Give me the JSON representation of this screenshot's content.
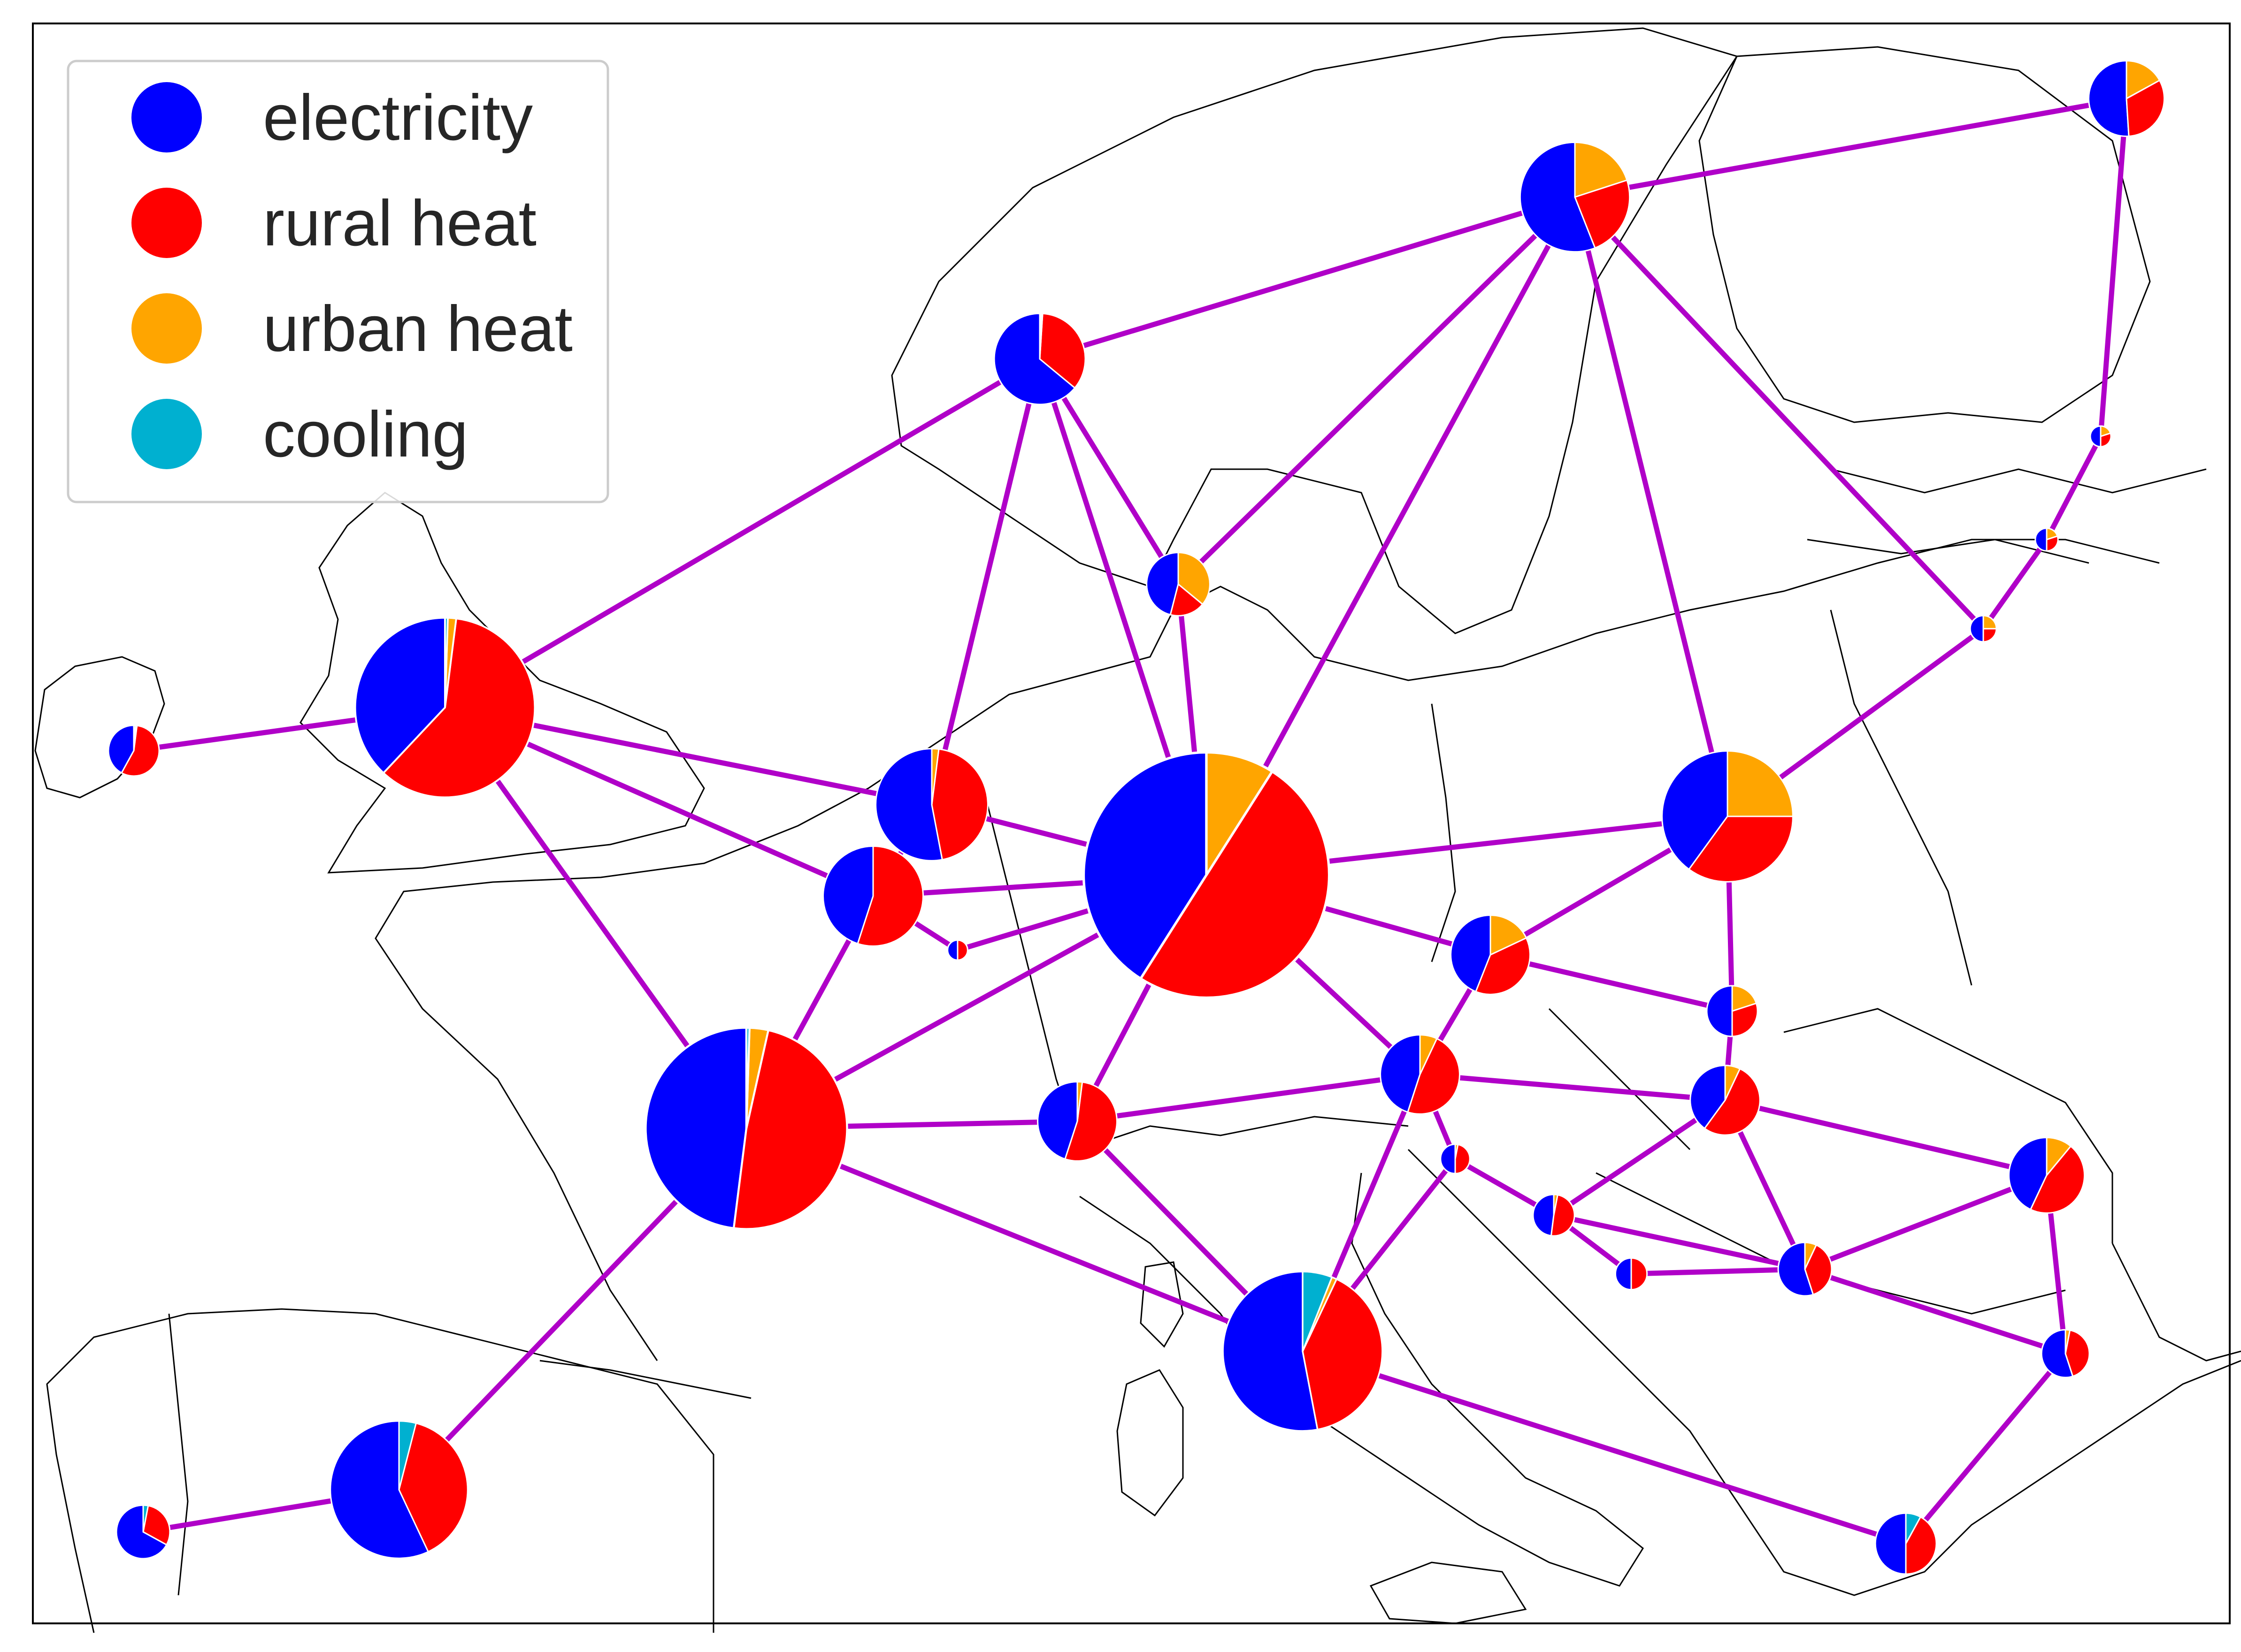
{
  "colors": {
    "electricity": "#0000ff",
    "rural_heat": "#ff0000",
    "urban_heat": "#ffa500",
    "cooling": "#00b0d0",
    "link": "#b000c8",
    "coast": "#000000",
    "background": "#ffffff"
  },
  "legend": {
    "placement": "top-left",
    "items": [
      {
        "key": "electricity",
        "label": "electricity",
        "color": "#0000ff"
      },
      {
        "key": "rural_heat",
        "label": "rural heat",
        "color": "#ff0000"
      },
      {
        "key": "urban_heat",
        "label": "urban heat",
        "color": "#ffa500"
      },
      {
        "key": "cooling",
        "label": "cooling",
        "color": "#00b0d0"
      }
    ]
  },
  "nodes": [
    {
      "id": "ireland",
      "total": 9,
      "shares": {
        "electricity": 0.42,
        "rural_heat": 0.56,
        "urban_heat": 0.01,
        "cooling": 0.01
      }
    },
    {
      "id": "great-britain",
      "total": 113,
      "shares": {
        "electricity": 0.38,
        "rural_heat": 0.6,
        "urban_heat": 0.015,
        "cooling": 0.005
      }
    },
    {
      "id": "norway",
      "total": 29,
      "shares": {
        "electricity": 0.64,
        "rural_heat": 0.35,
        "urban_heat": 0.005,
        "cooling": 0.005
      }
    },
    {
      "id": "sweden",
      "total": 42,
      "shares": {
        "electricity": 0.56,
        "rural_heat": 0.24,
        "urban_heat": 0.2,
        "cooling": 0.0
      }
    },
    {
      "id": "finland",
      "total": 20,
      "shares": {
        "electricity": 0.51,
        "rural_heat": 0.32,
        "urban_heat": 0.17,
        "cooling": 0.0
      }
    },
    {
      "id": "estonia",
      "total": 1.5,
      "shares": {
        "electricity": 0.5,
        "rural_heat": 0.3,
        "urban_heat": 0.2,
        "cooling": 0.0
      }
    },
    {
      "id": "latvia",
      "total": 1.8,
      "shares": {
        "electricity": 0.5,
        "rural_heat": 0.3,
        "urban_heat": 0.2,
        "cooling": 0.0
      }
    },
    {
      "id": "lithuania",
      "total": 2.4,
      "shares": {
        "electricity": 0.5,
        "rural_heat": 0.25,
        "urban_heat": 0.25,
        "cooling": 0.0
      }
    },
    {
      "id": "denmark",
      "total": 14,
      "shares": {
        "electricity": 0.46,
        "rural_heat": 0.18,
        "urban_heat": 0.36,
        "cooling": 0.0
      }
    },
    {
      "id": "netherlands",
      "total": 44,
      "shares": {
        "electricity": 0.53,
        "rural_heat": 0.45,
        "urban_heat": 0.02,
        "cooling": 0.0
      }
    },
    {
      "id": "belgium",
      "total": 35,
      "shares": {
        "electricity": 0.45,
        "rural_heat": 0.55,
        "urban_heat": 0.0,
        "cooling": 0.0
      }
    },
    {
      "id": "luxembourg",
      "total": 1.4,
      "shares": {
        "electricity": 0.5,
        "rural_heat": 0.5,
        "urban_heat": 0.0,
        "cooling": 0.0
      }
    },
    {
      "id": "germany",
      "total": 211,
      "shares": {
        "electricity": 0.41,
        "rural_heat": 0.5,
        "urban_heat": 0.09,
        "cooling": 0.0
      }
    },
    {
      "id": "poland",
      "total": 60,
      "shares": {
        "electricity": 0.4,
        "rural_heat": 0.35,
        "urban_heat": 0.25,
        "cooling": 0.0
      }
    },
    {
      "id": "czechia",
      "total": 22,
      "shares": {
        "electricity": 0.44,
        "rural_heat": 0.38,
        "urban_heat": 0.18,
        "cooling": 0.0
      }
    },
    {
      "id": "slovakia",
      "total": 9,
      "shares": {
        "electricity": 0.5,
        "rural_heat": 0.3,
        "urban_heat": 0.2,
        "cooling": 0.0
      }
    },
    {
      "id": "austria",
      "total": 22,
      "shares": {
        "electricity": 0.45,
        "rural_heat": 0.48,
        "urban_heat": 0.07,
        "cooling": 0.0
      }
    },
    {
      "id": "hungary",
      "total": 17,
      "shares": {
        "electricity": 0.4,
        "rural_heat": 0.53,
        "urban_heat": 0.07,
        "cooling": 0.0
      }
    },
    {
      "id": "switzerland",
      "total": 22,
      "shares": {
        "electricity": 0.45,
        "rural_heat": 0.53,
        "urban_heat": 0.02,
        "cooling": 0.0
      }
    },
    {
      "id": "slovenia",
      "total": 3,
      "shares": {
        "electricity": 0.5,
        "rural_heat": 0.47,
        "urban_heat": 0.03,
        "cooling": 0.0
      }
    },
    {
      "id": "croatia",
      "total": 6,
      "shares": {
        "electricity": 0.48,
        "rural_heat": 0.49,
        "urban_heat": 0.03,
        "cooling": 0.0
      }
    },
    {
      "id": "bosnia",
      "total": 3.5,
      "shares": {
        "electricity": 0.5,
        "rural_heat": 0.5,
        "urban_heat": 0.0,
        "cooling": 0.0
      }
    },
    {
      "id": "serbia",
      "total": 10,
      "shares": {
        "electricity": 0.55,
        "rural_heat": 0.38,
        "urban_heat": 0.07,
        "cooling": 0.0
      }
    },
    {
      "id": "romania",
      "total": 20,
      "shares": {
        "electricity": 0.43,
        "rural_heat": 0.46,
        "urban_heat": 0.11,
        "cooling": 0.0
      }
    },
    {
      "id": "bulgaria",
      "total": 8,
      "shares": {
        "electricity": 0.55,
        "rural_heat": 0.42,
        "urban_heat": 0.03,
        "cooling": 0.0
      }
    },
    {
      "id": "greece",
      "total": 13,
      "shares": {
        "electricity": 0.5,
        "rural_heat": 0.42,
        "urban_heat": 0.0,
        "cooling": 0.08
      }
    },
    {
      "id": "italy",
      "total": 89,
      "shares": {
        "electricity": 0.53,
        "rural_heat": 0.4,
        "urban_heat": 0.01,
        "cooling": 0.06
      }
    },
    {
      "id": "france",
      "total": 142,
      "shares": {
        "electricity": 0.48,
        "rural_heat": 0.485,
        "urban_heat": 0.03,
        "cooling": 0.005
      }
    },
    {
      "id": "spain",
      "total": 66,
      "shares": {
        "electricity": 0.57,
        "rural_heat": 0.39,
        "urban_heat": 0.0,
        "cooling": 0.04
      }
    },
    {
      "id": "portugal",
      "total": 10,
      "shares": {
        "electricity": 0.67,
        "rural_heat": 0.3,
        "urban_heat": 0.0,
        "cooling": 0.03
      }
    }
  ],
  "links": [
    [
      "ireland",
      "great-britain"
    ],
    [
      "great-britain",
      "norway"
    ],
    [
      "great-britain",
      "netherlands"
    ],
    [
      "great-britain",
      "belgium"
    ],
    [
      "great-britain",
      "france"
    ],
    [
      "norway",
      "sweden"
    ],
    [
      "norway",
      "netherlands"
    ],
    [
      "norway",
      "denmark"
    ],
    [
      "norway",
      "germany"
    ],
    [
      "sweden",
      "finland"
    ],
    [
      "sweden",
      "denmark"
    ],
    [
      "sweden",
      "germany"
    ],
    [
      "sweden",
      "poland"
    ],
    [
      "sweden",
      "lithuania"
    ],
    [
      "finland",
      "estonia"
    ],
    [
      "estonia",
      "latvia"
    ],
    [
      "latvia",
      "lithuania"
    ],
    [
      "lithuania",
      "poland"
    ],
    [
      "denmark",
      "germany"
    ],
    [
      "netherlands",
      "germany"
    ],
    [
      "netherlands",
      "belgium"
    ],
    [
      "belgium",
      "germany"
    ],
    [
      "belgium",
      "france"
    ],
    [
      "belgium",
      "luxembourg"
    ],
    [
      "luxembourg",
      "germany"
    ],
    [
      "germany",
      "poland"
    ],
    [
      "germany",
      "czechia"
    ],
    [
      "germany",
      "austria"
    ],
    [
      "germany",
      "france"
    ],
    [
      "germany",
      "switzerland"
    ],
    [
      "poland",
      "czechia"
    ],
    [
      "poland",
      "slovakia"
    ],
    [
      "czechia",
      "slovakia"
    ],
    [
      "czechia",
      "austria"
    ],
    [
      "slovakia",
      "hungary"
    ],
    [
      "austria",
      "hungary"
    ],
    [
      "austria",
      "switzerland"
    ],
    [
      "austria",
      "slovenia"
    ],
    [
      "austria",
      "italy"
    ],
    [
      "switzerland",
      "france"
    ],
    [
      "switzerland",
      "italy"
    ],
    [
      "slovenia",
      "italy"
    ],
    [
      "slovenia",
      "croatia"
    ],
    [
      "croatia",
      "hungary"
    ],
    [
      "croatia",
      "bosnia"
    ],
    [
      "croatia",
      "serbia"
    ],
    [
      "bosnia",
      "serbia"
    ],
    [
      "hungary",
      "serbia"
    ],
    [
      "hungary",
      "romania"
    ],
    [
      "serbia",
      "romania"
    ],
    [
      "serbia",
      "bulgaria"
    ],
    [
      "romania",
      "bulgaria"
    ],
    [
      "bulgaria",
      "greece"
    ],
    [
      "italy",
      "greece"
    ],
    [
      "italy",
      "france"
    ],
    [
      "france",
      "spain"
    ],
    [
      "spain",
      "portugal"
    ]
  ]
}
